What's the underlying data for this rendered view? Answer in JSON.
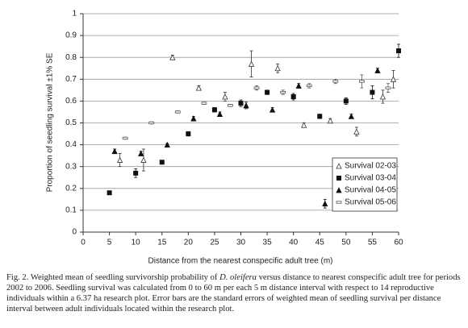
{
  "chart_data": {
    "type": "scatter",
    "x_label": "Distance from the nearest conspecific adult tree (m)",
    "y_label": "Proportion of seedling survival ±1% SE",
    "xlim": [
      0,
      60
    ],
    "xticks": [
      0,
      5,
      10,
      15,
      20,
      25,
      30,
      35,
      40,
      45,
      50,
      55,
      60
    ],
    "ylim": [
      0,
      1
    ],
    "yticks": [
      0,
      0.1,
      0.2,
      0.3,
      0.4,
      0.5,
      0.6,
      0.7,
      0.8,
      0.9,
      1
    ],
    "grid": true,
    "legend": "lower right",
    "series": [
      {
        "name": "Survival 02-03",
        "color": "#333333",
        "marker": "triangle-open",
        "x": [
          7,
          11.5,
          17,
          22,
          27,
          32,
          37,
          42,
          47,
          52,
          57,
          59
        ],
        "values": [
          0.33,
          0.33,
          0.8,
          0.66,
          0.62,
          0.77,
          0.75,
          0.49,
          0.51,
          0.46,
          0.62,
          0.7
        ],
        "errors": [
          0.03,
          0.05,
          0.01,
          0.01,
          0.02,
          0.06,
          0.02,
          0.01,
          0.01,
          0.02,
          0.03,
          0.04
        ]
      },
      {
        "name": "Survival 03-04",
        "color": "#111111",
        "marker": "square-filled",
        "x": [
          5,
          10,
          15,
          20,
          25,
          30,
          35,
          40,
          45,
          50,
          55,
          60
        ],
        "values": [
          0.18,
          0.27,
          0.32,
          0.45,
          0.56,
          0.59,
          0.64,
          0.62,
          0.53,
          0.6,
          0.64,
          0.83
        ],
        "errors": [
          0.005,
          0.02,
          0.005,
          0.01,
          0.01,
          0.015,
          0.01,
          0.015,
          0.01,
          0.015,
          0.03,
          0.03
        ]
      },
      {
        "name": "Survival 04-05",
        "color": "#111111",
        "marker": "triangle-filled",
        "x": [
          6,
          11,
          16,
          21,
          26,
          31,
          36,
          41,
          46,
          51,
          56
        ],
        "values": [
          0.37,
          0.36,
          0.4,
          0.52,
          0.54,
          0.58,
          0.56,
          0.67,
          0.13,
          0.53,
          0.74
        ],
        "errors": [
          0.01,
          0.01,
          0.005,
          0.01,
          0.01,
          0.015,
          0.01,
          0.01,
          0.02,
          0.01,
          0.01
        ]
      },
      {
        "name": "Survival 05-06",
        "color": "#555555",
        "marker": "dash",
        "x": [
          8,
          13,
          18,
          23,
          28,
          33,
          38,
          43,
          48,
          53,
          58
        ],
        "values": [
          0.43,
          0.5,
          0.55,
          0.59,
          0.58,
          0.66,
          0.64,
          0.67,
          0.69,
          0.69,
          0.66
        ],
        "errors": [
          0.005,
          0.005,
          0.005,
          0.005,
          0.005,
          0.01,
          0.01,
          0.01,
          0.01,
          0.03,
          0.02
        ]
      }
    ],
    "caption": [
      "Fig. 2. Weighted mean of seedling survivorship probability of ",
      "D. oleifera",
      " versus distance to nearest conspecific adult tree for periods 2002 to 2006. Seedling survival was calculated from 0 to 60 m per each 5 m distance interval with respect to 14 reproductive individuals within a 6.37 ha research plot. Error bars are the standard errors of weighted mean of seedling survival per distance interval between adult individuals located within the research plot."
    ]
  }
}
